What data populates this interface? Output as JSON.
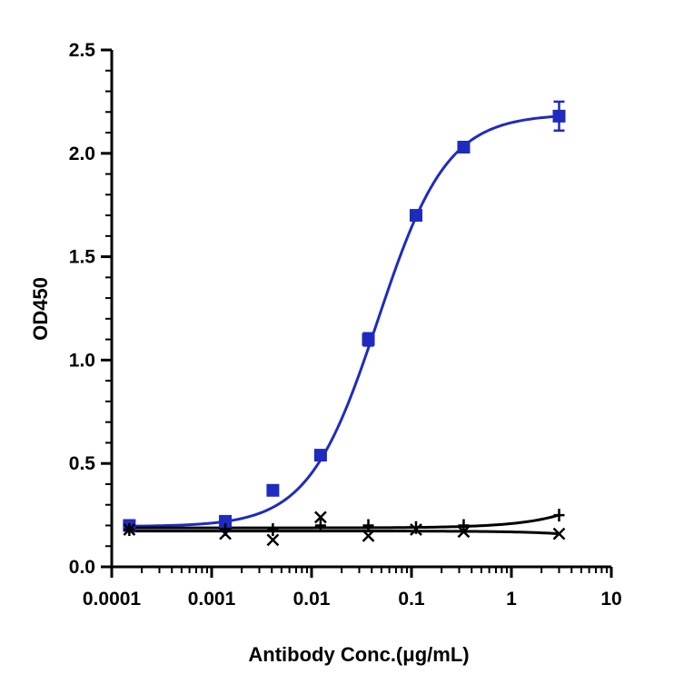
{
  "chart_data": {
    "type": "scatter",
    "title": "",
    "xlabel": "Antibody Conc.(μg/mL)",
    "ylabel": "OD450",
    "xscale": "log",
    "xlim": [
      0.0001,
      10
    ],
    "ylim": [
      0,
      2.5
    ],
    "xticks": [
      0.0001,
      0.001,
      0.01,
      0.1,
      1,
      10
    ],
    "xtick_labels": [
      "0.0001",
      "0.001",
      "0.01",
      "0.1",
      "1",
      "10"
    ],
    "yticks": [
      0,
      0.5,
      1.0,
      1.5,
      2.0,
      2.5
    ],
    "ytick_labels": [
      "0.0",
      "0.5",
      "1.0",
      "1.5",
      "2.0",
      "2.5"
    ],
    "grid": false,
    "legend": "none",
    "series": [
      {
        "color": "#1f2bbf",
        "marker": "square",
        "fit": "sigmoid",
        "points": [
          {
            "x": 0.00015,
            "y": 0.2,
            "err": 0.01
          },
          {
            "x": 0.00137,
            "y": 0.22,
            "err": 0.01
          },
          {
            "x": 0.0041,
            "y": 0.37,
            "err": 0.02
          },
          {
            "x": 0.0123,
            "y": 0.54,
            "err": 0.01
          },
          {
            "x": 0.037,
            "y": 1.1,
            "err": 0.03
          },
          {
            "x": 0.111,
            "y": 1.7,
            "err": 0.01
          },
          {
            "x": 0.333,
            "y": 2.03,
            "err": 0.01
          },
          {
            "x": 3.0,
            "y": 2.18,
            "err": 0.07
          }
        ]
      },
      {
        "color": "#000000",
        "marker": "plus",
        "fit": "line",
        "points": [
          {
            "x": 0.00015,
            "y": 0.18
          },
          {
            "x": 0.00137,
            "y": 0.18
          },
          {
            "x": 0.0041,
            "y": 0.18
          },
          {
            "x": 0.0123,
            "y": 0.2
          },
          {
            "x": 0.037,
            "y": 0.2
          },
          {
            "x": 0.111,
            "y": 0.19
          },
          {
            "x": 0.333,
            "y": 0.2
          },
          {
            "x": 3.0,
            "y": 0.25
          }
        ]
      },
      {
        "color": "#000000",
        "marker": "x",
        "fit": "line",
        "points": [
          {
            "x": 0.00015,
            "y": 0.18
          },
          {
            "x": 0.00137,
            "y": 0.16
          },
          {
            "x": 0.0041,
            "y": 0.13
          },
          {
            "x": 0.0123,
            "y": 0.24
          },
          {
            "x": 0.037,
            "y": 0.15
          },
          {
            "x": 0.111,
            "y": 0.18
          },
          {
            "x": 0.333,
            "y": 0.17
          },
          {
            "x": 3.0,
            "y": 0.16
          }
        ]
      }
    ]
  }
}
